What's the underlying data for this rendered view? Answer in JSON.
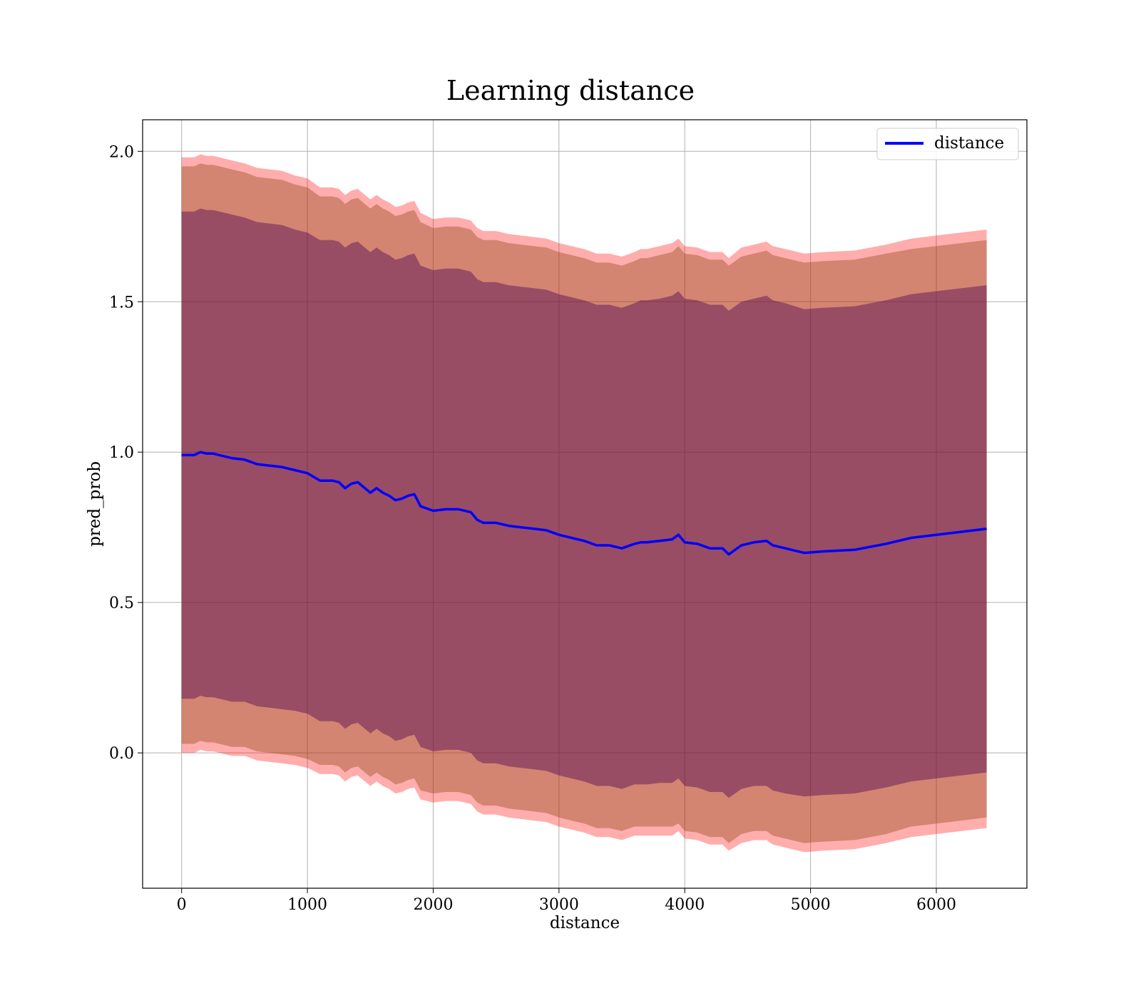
{
  "chart_data": {
    "type": "line",
    "title": "Learning distance",
    "xlabel": "distance",
    "ylabel": "pred_prob",
    "xlim": [
      -310,
      6720
    ],
    "ylim": [
      -0.45,
      2.105
    ],
    "xticks": [
      "0",
      "1000",
      "2000",
      "3000",
      "4000",
      "5000",
      "6000"
    ],
    "xtick_values": [
      0,
      1000,
      2000,
      3000,
      4000,
      5000,
      6000
    ],
    "yticks": [
      "0.0",
      "0.5",
      "1.0",
      "1.5",
      "2.0"
    ],
    "ytick_values": [
      0.0,
      0.5,
      1.0,
      1.5,
      2.0
    ],
    "grid": true,
    "legend_position": "top-right",
    "colors": {
      "line": "#0000ff",
      "band_outer": "#ff0000",
      "band_middle": "#8b4513",
      "band_inner": "#4b0050"
    },
    "series": [
      {
        "name": "distance",
        "x": [
          0,
          100,
          150,
          200,
          250,
          300,
          400,
          500,
          600,
          700,
          800,
          900,
          1000,
          1100,
          1200,
          1250,
          1300,
          1350,
          1400,
          1500,
          1550,
          1600,
          1650,
          1700,
          1750,
          1800,
          1850,
          1900,
          2000,
          2100,
          2200,
          2300,
          2350,
          2400,
          2500,
          2600,
          2700,
          2800,
          2900,
          3000,
          3100,
          3200,
          3300,
          3400,
          3500,
          3600,
          3650,
          3700,
          3800,
          3900,
          3950,
          4000,
          4100,
          4200,
          4300,
          4350,
          4450,
          4550,
          4650,
          4700,
          4800,
          4950,
          5100,
          5350,
          5600,
          5800,
          6100,
          6400
        ],
        "values": [
          0.99,
          0.99,
          1.0,
          0.995,
          0.995,
          0.99,
          0.98,
          0.975,
          0.96,
          0.955,
          0.95,
          0.94,
          0.93,
          0.905,
          0.905,
          0.9,
          0.88,
          0.895,
          0.9,
          0.865,
          0.88,
          0.865,
          0.855,
          0.84,
          0.845,
          0.855,
          0.86,
          0.82,
          0.805,
          0.81,
          0.81,
          0.8,
          0.775,
          0.765,
          0.765,
          0.755,
          0.75,
          0.745,
          0.74,
          0.725,
          0.715,
          0.705,
          0.69,
          0.69,
          0.68,
          0.695,
          0.7,
          0.7,
          0.705,
          0.71,
          0.725,
          0.7,
          0.695,
          0.68,
          0.68,
          0.66,
          0.69,
          0.7,
          0.705,
          0.69,
          0.68,
          0.665,
          0.67,
          0.675,
          0.695,
          0.715,
          0.73,
          0.745
        ],
        "band_outer_halfwidth": [
          0.99,
          0.99,
          0.99,
          0.99,
          0.99,
          0.99,
          0.99,
          0.985,
          0.985,
          0.985,
          0.985,
          0.98,
          0.98,
          0.975,
          0.975,
          0.975,
          0.975,
          0.975,
          0.975,
          0.975,
          0.975,
          0.975,
          0.975,
          0.975,
          0.975,
          0.975,
          0.975,
          0.975,
          0.97,
          0.97,
          0.97,
          0.97,
          0.97,
          0.97,
          0.97,
          0.97,
          0.97,
          0.97,
          0.97,
          0.97,
          0.97,
          0.97,
          0.97,
          0.97,
          0.97,
          0.97,
          0.975,
          0.975,
          0.98,
          0.985,
          0.985,
          0.985,
          0.985,
          0.985,
          0.985,
          0.985,
          0.99,
          0.99,
          0.995,
          0.995,
          0.995,
          0.995,
          0.995,
          0.995,
          0.995,
          0.995,
          0.995,
          0.995
        ],
        "band_middle_halfwidth": [
          0.96,
          0.96,
          0.96,
          0.96,
          0.96,
          0.96,
          0.96,
          0.955,
          0.955,
          0.955,
          0.955,
          0.95,
          0.95,
          0.945,
          0.945,
          0.945,
          0.945,
          0.945,
          0.945,
          0.945,
          0.945,
          0.945,
          0.945,
          0.945,
          0.945,
          0.945,
          0.945,
          0.945,
          0.94,
          0.94,
          0.94,
          0.94,
          0.94,
          0.94,
          0.94,
          0.94,
          0.94,
          0.94,
          0.94,
          0.94,
          0.94,
          0.94,
          0.94,
          0.94,
          0.94,
          0.94,
          0.945,
          0.945,
          0.95,
          0.955,
          0.96,
          0.96,
          0.96,
          0.96,
          0.96,
          0.96,
          0.96,
          0.96,
          0.965,
          0.965,
          0.965,
          0.965,
          0.965,
          0.965,
          0.965,
          0.96,
          0.96,
          0.96
        ],
        "band_inner_halfwidth": [
          0.81,
          0.81,
          0.81,
          0.81,
          0.81,
          0.81,
          0.81,
          0.805,
          0.805,
          0.805,
          0.805,
          0.8,
          0.8,
          0.8,
          0.8,
          0.8,
          0.8,
          0.8,
          0.8,
          0.8,
          0.8,
          0.8,
          0.8,
          0.8,
          0.8,
          0.8,
          0.8,
          0.8,
          0.8,
          0.8,
          0.8,
          0.8,
          0.8,
          0.8,
          0.8,
          0.8,
          0.8,
          0.8,
          0.8,
          0.8,
          0.8,
          0.8,
          0.8,
          0.8,
          0.8,
          0.8,
          0.805,
          0.805,
          0.805,
          0.81,
          0.81,
          0.81,
          0.81,
          0.81,
          0.81,
          0.81,
          0.81,
          0.81,
          0.815,
          0.815,
          0.815,
          0.81,
          0.81,
          0.81,
          0.81,
          0.81,
          0.81,
          0.81
        ]
      }
    ]
  }
}
